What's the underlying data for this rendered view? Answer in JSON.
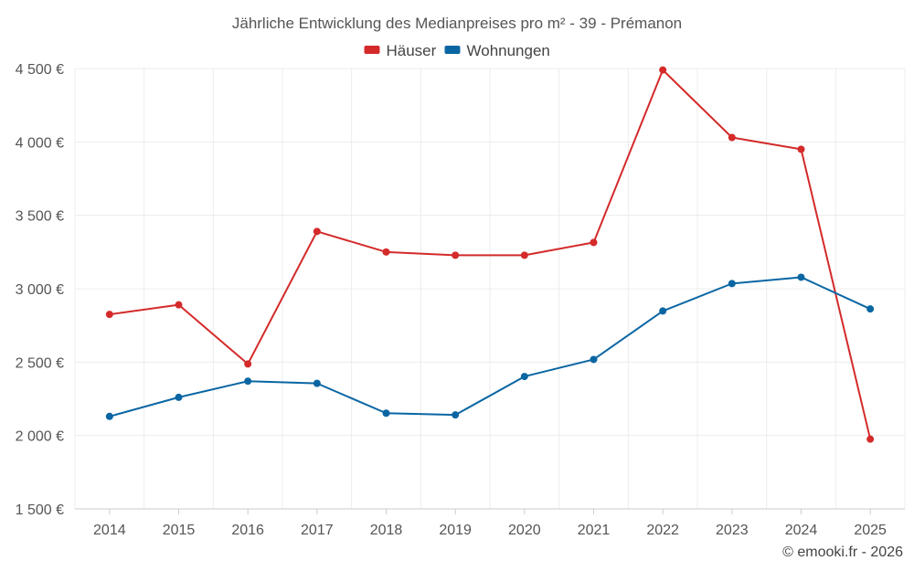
{
  "chart_data": {
    "type": "line",
    "title": "Jährliche Entwicklung des Medianpreises pro m² - 39 - Prémanon",
    "categories": [
      "2014",
      "2015",
      "2016",
      "2017",
      "2018",
      "2019",
      "2020",
      "2021",
      "2022",
      "2023",
      "2024",
      "2025"
    ],
    "series": [
      {
        "name": "Häuser",
        "color": "#d42a2a",
        "values": [
          2825,
          2890,
          2487,
          3390,
          3250,
          3228,
          3228,
          3315,
          4490,
          4030,
          3950,
          1975
        ]
      },
      {
        "name": "Wohnungen",
        "color": "#0a66a3",
        "values": [
          2130,
          2260,
          2370,
          2355,
          2152,
          2140,
          2402,
          2518,
          2848,
          3035,
          3078,
          2862
        ]
      }
    ],
    "ylim": [
      1500,
      4500
    ],
    "yticks": [
      1500,
      2000,
      2500,
      3000,
      3500,
      4000,
      4500
    ],
    "ytick_labels": [
      "1 500 €",
      "2 000 €",
      "2 500 €",
      "3 000 €",
      "3 500 €",
      "4 000 €",
      "4 500 €"
    ],
    "xlabel": "",
    "ylabel": "",
    "grid": true,
    "legend_position": "top-center"
  },
  "credit": "© emooki.fr - 2026"
}
